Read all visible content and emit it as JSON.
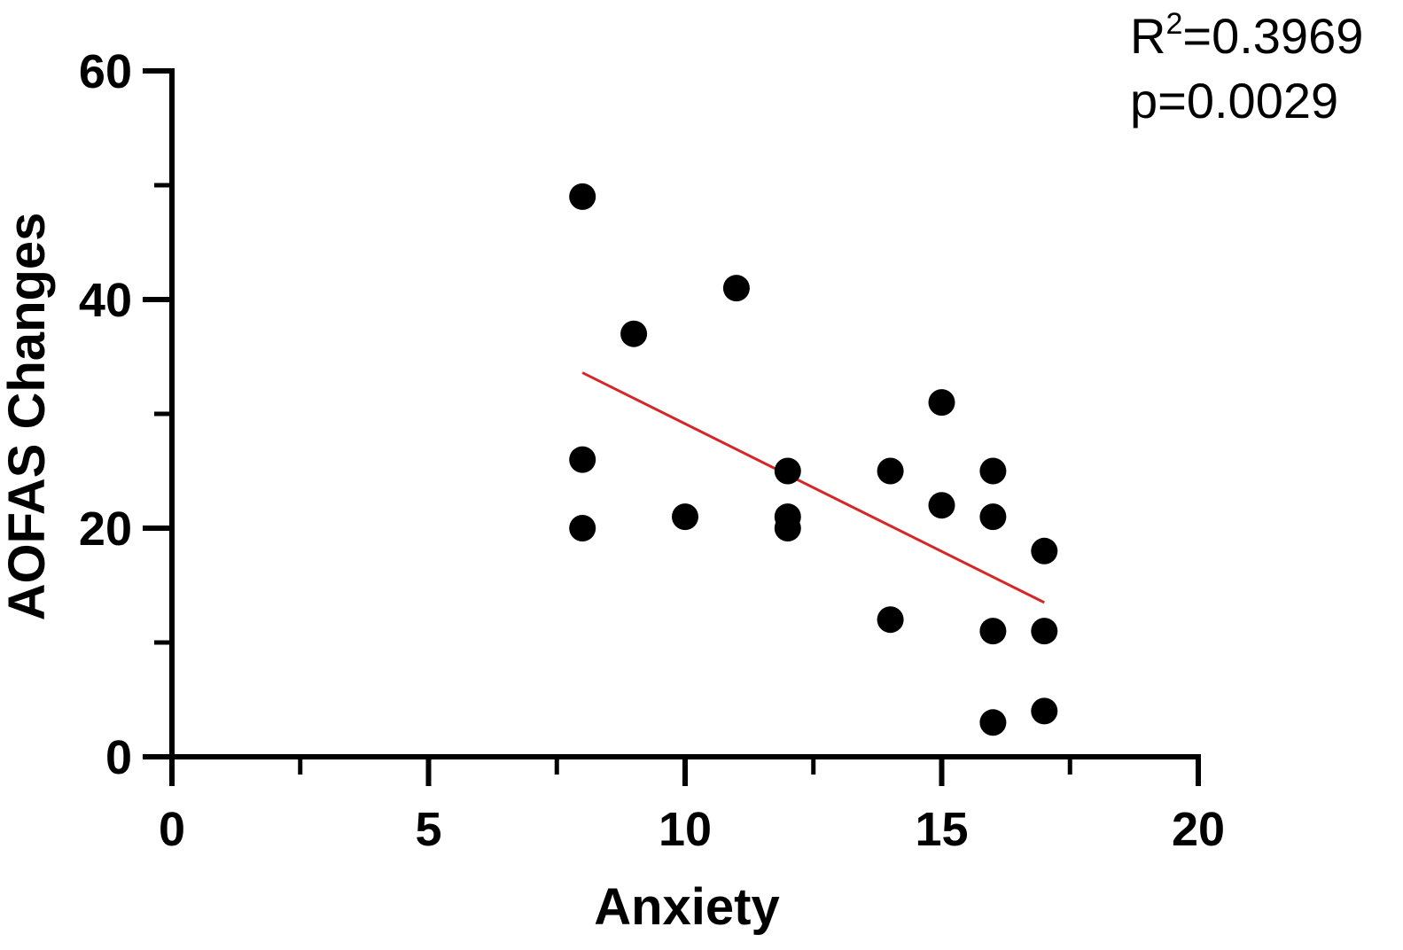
{
  "chart_data": {
    "type": "scatter",
    "title": "",
    "xlabel": "Anxiety",
    "ylabel": "AOFAS Changes",
    "xlim": [
      0,
      20
    ],
    "ylim": [
      0,
      60
    ],
    "x_ticks": [
      "0",
      "5",
      "10",
      "15",
      "20"
    ],
    "y_ticks": [
      "0",
      "20",
      "40",
      "60"
    ],
    "x_minor_ticks": [
      2.5,
      7.5,
      12.5,
      17.5
    ],
    "y_minor_ticks": [
      10,
      30,
      50
    ],
    "grid": false,
    "legend": "none",
    "points": [
      {
        "x": 8,
        "y": 49
      },
      {
        "x": 8,
        "y": 26
      },
      {
        "x": 8,
        "y": 20
      },
      {
        "x": 9,
        "y": 37
      },
      {
        "x": 10,
        "y": 21
      },
      {
        "x": 11,
        "y": 41
      },
      {
        "x": 12,
        "y": 25
      },
      {
        "x": 12,
        "y": 21
      },
      {
        "x": 12,
        "y": 20
      },
      {
        "x": 14,
        "y": 25
      },
      {
        "x": 14,
        "y": 12
      },
      {
        "x": 15,
        "y": 31
      },
      {
        "x": 15,
        "y": 22
      },
      {
        "x": 16,
        "y": 25
      },
      {
        "x": 16,
        "y": 21
      },
      {
        "x": 16,
        "y": 11
      },
      {
        "x": 16,
        "y": 3
      },
      {
        "x": 17,
        "y": 18
      },
      {
        "x": 17,
        "y": 11
      },
      {
        "x": 17,
        "y": 4
      }
    ],
    "regression_line": {
      "x": [
        8,
        17
      ],
      "y": [
        33.6,
        13.5
      ],
      "color": "#d62728"
    },
    "point_color": "#000000",
    "annotations": {
      "r2_prefix": "R",
      "r2_sup": "2",
      "r2_value": "=0.3969",
      "p_text": "p=0.0029"
    }
  }
}
